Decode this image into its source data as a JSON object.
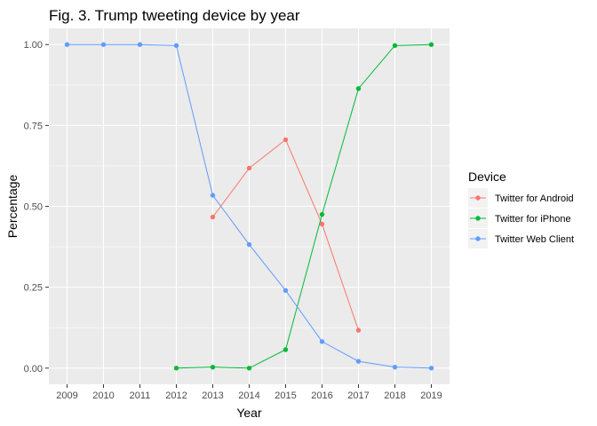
{
  "chart_data": {
    "type": "line",
    "title": "Fig. 3. Trump tweeting device by year",
    "xlabel": "Year",
    "ylabel": "Percentage",
    "x": [
      2009,
      2010,
      2011,
      2012,
      2013,
      2014,
      2015,
      2016,
      2017,
      2018,
      2019
    ],
    "xlim": [
      2008.5,
      2019.5
    ],
    "ylim": [
      -0.05,
      1.05
    ],
    "yticks": [
      0.0,
      0.25,
      0.5,
      0.75,
      1.0
    ],
    "ytick_labels": [
      "0.00",
      "0.25",
      "0.50",
      "0.75",
      "1.00"
    ],
    "grid": true,
    "legend": {
      "title": "Device",
      "position": "right"
    },
    "series": [
      {
        "name": "Twitter for Android",
        "color": "#F8766D",
        "x": [
          2013,
          2014,
          2015,
          2016,
          2017
        ],
        "values": [
          0.467,
          0.618,
          0.706,
          0.445,
          0.117
        ]
      },
      {
        "name": "Twitter for iPhone",
        "color": "#00BA38",
        "x": [
          2012,
          2013,
          2014,
          2015,
          2016,
          2017,
          2018,
          2019
        ],
        "values": [
          0.0,
          0.003,
          0.0,
          0.057,
          0.475,
          0.864,
          0.997,
          1.0
        ]
      },
      {
        "name": "Twitter Web Client",
        "color": "#619CFF",
        "x": [
          2009,
          2010,
          2011,
          2012,
          2013,
          2014,
          2015,
          2016,
          2017,
          2018,
          2019
        ],
        "values": [
          1.0,
          1.0,
          1.0,
          0.997,
          0.534,
          0.382,
          0.24,
          0.082,
          0.021,
          0.003,
          0.0
        ]
      }
    ]
  }
}
